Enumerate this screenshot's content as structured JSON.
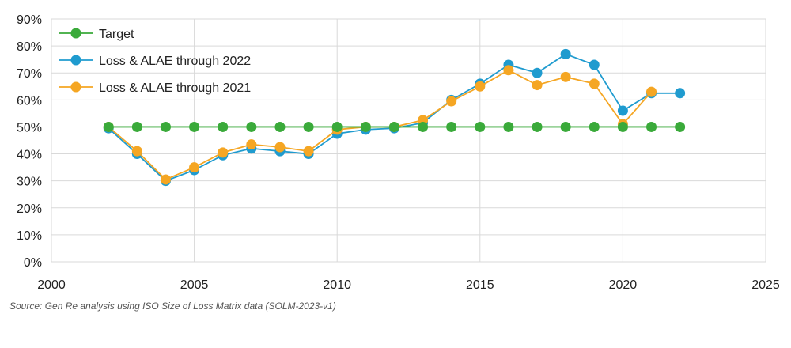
{
  "chart_data": {
    "type": "line",
    "title": "",
    "xlabel": "",
    "ylabel": "",
    "xlim": [
      2000,
      2025
    ],
    "ylim": [
      0,
      90
    ],
    "x_ticks": [
      2000,
      2005,
      2010,
      2015,
      2020,
      2025
    ],
    "y_ticks": [
      0,
      10,
      20,
      30,
      40,
      50,
      60,
      70,
      80,
      90
    ],
    "y_format": "percent",
    "grid": true,
    "legend_position": "top-left",
    "series": [
      {
        "name": "Target",
        "color": "#3aaa3a",
        "x": [
          2002,
          2003,
          2004,
          2005,
          2006,
          2007,
          2008,
          2009,
          2010,
          2011,
          2012,
          2013,
          2014,
          2015,
          2016,
          2017,
          2018,
          2019,
          2020,
          2021,
          2022
        ],
        "y": [
          50,
          50,
          50,
          50,
          50,
          50,
          50,
          50,
          50,
          50,
          50,
          50,
          50,
          50,
          50,
          50,
          50,
          50,
          50,
          50,
          50
        ]
      },
      {
        "name": "Loss & ALAE through 2022",
        "color": "#1f9bcf",
        "x": [
          2002,
          2003,
          2004,
          2005,
          2006,
          2007,
          2008,
          2009,
          2010,
          2011,
          2012,
          2013,
          2014,
          2015,
          2016,
          2017,
          2018,
          2019,
          2020,
          2021,
          2022
        ],
        "y": [
          49.5,
          40,
          30,
          34,
          39.5,
          42,
          41,
          40,
          47.5,
          49,
          49.5,
          51.5,
          60,
          66,
          73,
          70,
          77,
          73,
          56,
          62.5,
          62.5
        ]
      },
      {
        "name": "Loss & ALAE through 2021",
        "color": "#f5a623",
        "x": [
          2002,
          2003,
          2004,
          2005,
          2006,
          2007,
          2008,
          2009,
          2010,
          2011,
          2012,
          2013,
          2014,
          2015,
          2016,
          2017,
          2018,
          2019,
          2020,
          2021
        ],
        "y": [
          50,
          41,
          30.5,
          35,
          40.5,
          43.5,
          42.5,
          41,
          49,
          50,
          50,
          52.5,
          59.5,
          65,
          71,
          65.5,
          68.5,
          66,
          51,
          63
        ]
      }
    ]
  },
  "source_note": "Source: Gen Re analysis using ISO Size of Loss Matrix data (SOLM-2023-v1)"
}
